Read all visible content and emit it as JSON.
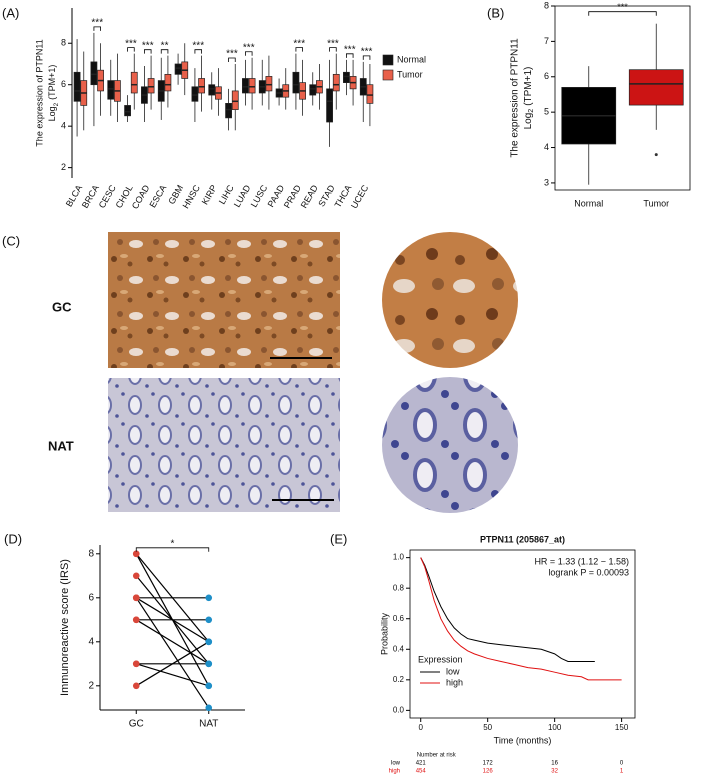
{
  "chart_data": [
    {
      "type": "grouped_boxplot",
      "panel": "(A)",
      "ylabel": "The expression of PTPN11",
      "ylabel_sub": {
        "base": "Log",
        "sub": "2",
        "rest": "(TPM+1)"
      },
      "ylim": [
        1.5,
        9.7
      ],
      "yticks": [
        2,
        4,
        6,
        8
      ],
      "categories": [
        "BLCA",
        "BRCA",
        "CESC",
        "CHOL",
        "COAD",
        "ESCA",
        "GBM",
        "HNSC",
        "KIRP",
        "LIHC",
        "LUAD",
        "LUSC",
        "PAAD",
        "PRAD",
        "READ",
        "STAD",
        "THCA",
        "UCEC"
      ],
      "significance": [
        null,
        "***",
        null,
        "***",
        "***",
        "**",
        null,
        "***",
        null,
        "***",
        "***",
        null,
        null,
        "***",
        null,
        "***",
        "***",
        "***"
      ],
      "series": [
        {
          "name": "Normal",
          "color": "#111111",
          "values": [
            [
              3.5,
              5.2,
              5.7,
              6.6,
              8.2
            ],
            [
              4.0,
              6.0,
              6.5,
              7.1,
              8.5
            ],
            [
              4.5,
              5.3,
              5.8,
              6.2,
              7.2
            ],
            [
              4.2,
              4.5,
              4.7,
              5.0,
              5.5
            ],
            [
              4.2,
              5.1,
              5.5,
              5.9,
              6.9
            ],
            [
              4.3,
              5.2,
              5.7,
              6.2,
              7.3
            ],
            [
              6.0,
              6.5,
              6.8,
              7.0,
              7.5
            ],
            [
              4.2,
              5.2,
              5.5,
              5.9,
              6.8
            ],
            [
              4.8,
              5.5,
              5.8,
              6.0,
              6.6
            ],
            [
              3.8,
              4.4,
              4.8,
              5.1,
              5.8
            ],
            [
              5.0,
              5.6,
              5.9,
              6.3,
              7.2
            ],
            [
              5.0,
              5.6,
              5.9,
              6.2,
              7.2
            ],
            [
              5.0,
              5.4,
              5.6,
              5.8,
              6.3
            ],
            [
              4.8,
              5.6,
              6.0,
              6.6,
              7.5
            ],
            [
              5.0,
              5.5,
              5.8,
              6.0,
              6.6
            ],
            [
              3.0,
              4.2,
              5.2,
              5.8,
              7.2
            ],
            [
              5.5,
              6.1,
              6.4,
              6.6,
              7.2
            ],
            [
              4.2,
              5.5,
              5.9,
              6.3,
              7.1
            ]
          ]
        },
        {
          "name": "Tumor",
          "color": "#e8604a",
          "values": [
            [
              3.8,
              5.0,
              5.6,
              6.2,
              7.6
            ],
            [
              4.5,
              5.7,
              6.2,
              6.7,
              8.0
            ],
            [
              4.2,
              5.2,
              5.7,
              6.2,
              7.5
            ],
            [
              4.8,
              5.6,
              6.0,
              6.6,
              7.5
            ],
            [
              4.8,
              5.6,
              5.9,
              6.3,
              7.4
            ],
            [
              4.9,
              5.7,
              6.0,
              6.5,
              7.4
            ],
            [
              5.5,
              6.3,
              6.7,
              7.1,
              8.0
            ],
            [
              4.7,
              5.6,
              5.9,
              6.3,
              7.4
            ],
            [
              4.5,
              5.3,
              5.6,
              5.9,
              6.8
            ],
            [
              3.8,
              4.8,
              5.2,
              5.7,
              7.0
            ],
            [
              4.8,
              5.6,
              5.9,
              6.3,
              7.3
            ],
            [
              4.8,
              5.7,
              6.0,
              6.4,
              7.4
            ],
            [
              4.8,
              5.4,
              5.7,
              6.0,
              6.8
            ],
            [
              4.5,
              5.3,
              5.7,
              6.1,
              7.2
            ],
            [
              4.8,
              5.6,
              5.9,
              6.2,
              7.0
            ],
            [
              4.8,
              5.7,
              6.0,
              6.5,
              7.5
            ],
            [
              5.0,
              5.8,
              6.1,
              6.4,
              7.2
            ],
            [
              4.0,
              5.1,
              5.5,
              6.0,
              7.0
            ]
          ]
        }
      ]
    },
    {
      "type": "boxplot",
      "panel": "(B)",
      "ylabel": "The expression of PTPN11",
      "ylabel_sub": {
        "base": "Log",
        "sub": "2",
        "rest": "(TPM+1)"
      },
      "ylim": [
        2.8,
        8
      ],
      "yticks": [
        3,
        4,
        5,
        6,
        7,
        8
      ],
      "categories": [
        "Normal",
        "Tumor"
      ],
      "colors": [
        "#000000",
        "#cc1414"
      ],
      "values": [
        [
          2.95,
          4.1,
          4.9,
          5.7,
          6.3
        ],
        [
          4.5,
          5.2,
          5.8,
          6.2,
          7.5
        ]
      ],
      "outliers": [
        [],
        [
          3.8
        ]
      ],
      "significance": "***"
    },
    {
      "type": "paired_dot",
      "panel": "(D)",
      "ylabel": "Immunoreactive score (IRS)",
      "ylim": [
        0.9,
        8.4
      ],
      "yticks": [
        2,
        4,
        6,
        8
      ],
      "categories": [
        "GC",
        "NAT"
      ],
      "colors": [
        "#d9473a",
        "#1e8fc8"
      ],
      "significance": "*",
      "pairs": [
        [
          8,
          2
        ],
        [
          8,
          4
        ],
        [
          7,
          3
        ],
        [
          6,
          6
        ],
        [
          6,
          1
        ],
        [
          6,
          4
        ],
        [
          5,
          5
        ],
        [
          5,
          3
        ],
        [
          3,
          3
        ],
        [
          3,
          2
        ],
        [
          2,
          4
        ]
      ]
    },
    {
      "type": "survival",
      "panel": "(E)",
      "title": "PTPN11 (205867_at)",
      "annotations": [
        "HR = 1.33 (1.12 − 1.58)",
        "logrank P = 0.00093"
      ],
      "xlabel": "Time (months)",
      "ylabel": "Probability",
      "xlim": [
        -8,
        160
      ],
      "xticks": [
        0,
        50,
        100,
        150
      ],
      "ylim": [
        -0.05,
        1.05
      ],
      "yticks": [
        {
          "value": 0,
          "label": "0.0"
        },
        0.2,
        0.4,
        0.6,
        0.8,
        {
          "value": 1,
          "label": "1.0"
        }
      ],
      "legend_title": "Expression",
      "series": [
        {
          "name": "low",
          "color": "#000000",
          "x": [
            0,
            3,
            6,
            10,
            15,
            20,
            25,
            30,
            35,
            40,
            50,
            60,
            70,
            80,
            90,
            100,
            105,
            110,
            120,
            130
          ],
          "values": [
            1,
            0.95,
            0.88,
            0.78,
            0.68,
            0.6,
            0.54,
            0.5,
            0.47,
            0.46,
            0.44,
            0.43,
            0.42,
            0.41,
            0.4,
            0.37,
            0.34,
            0.32,
            0.32,
            0.32
          ]
        },
        {
          "name": "high",
          "color": "#e01010",
          "x": [
            0,
            3,
            6,
            10,
            15,
            20,
            25,
            30,
            35,
            40,
            50,
            60,
            70,
            80,
            90,
            100,
            110,
            120,
            125,
            140,
            150
          ],
          "values": [
            1,
            0.94,
            0.85,
            0.72,
            0.6,
            0.52,
            0.46,
            0.42,
            0.39,
            0.37,
            0.34,
            0.32,
            0.3,
            0.28,
            0.27,
            0.25,
            0.23,
            0.22,
            0.2,
            0.2,
            0.2
          ]
        }
      ],
      "risk_title": "Number at risk",
      "at_risk": [
        [
          421,
          172,
          16,
          0
        ],
        [
          454,
          126,
          32,
          1
        ]
      ]
    }
  ],
  "figure_c": {
    "panel": "(C)",
    "rows": [
      "GC",
      "NAT"
    ]
  }
}
